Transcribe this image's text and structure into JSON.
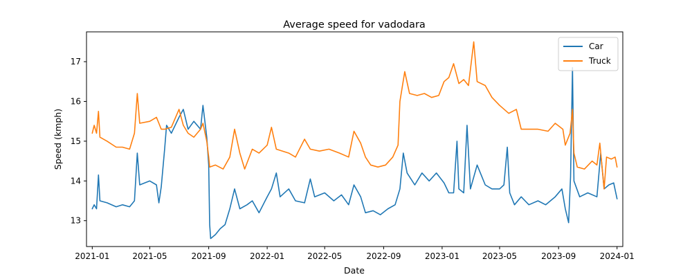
{
  "chart_data": {
    "type": "line",
    "title": "Average speed for vadodara",
    "xlabel": "Date",
    "ylabel": "Speed (kmph)",
    "xlim": [
      "2020-12-20",
      "2024-01-13"
    ],
    "ylim": [
      12.35,
      17.75
    ],
    "grid": false,
    "legend_position": "top-right",
    "x_ticks": [
      "2021-01",
      "2021-05",
      "2021-09",
      "2022-01",
      "2022-05",
      "2022-09",
      "2023-01",
      "2023-05",
      "2023-09",
      "2024-01"
    ],
    "y_ticks": [
      13,
      14,
      15,
      16,
      17
    ],
    "series": [
      {
        "name": "Car",
        "color": "#1f77b4",
        "points": [
          [
            "2021-01-01",
            13.3
          ],
          [
            "2021-01-05",
            13.4
          ],
          [
            "2021-01-10",
            13.3
          ],
          [
            "2021-01-14",
            14.15
          ],
          [
            "2021-01-17",
            13.5
          ],
          [
            "2021-02-01",
            13.45
          ],
          [
            "2021-02-20",
            13.35
          ],
          [
            "2021-03-05",
            13.4
          ],
          [
            "2021-03-20",
            13.35
          ],
          [
            "2021-03-30",
            13.5
          ],
          [
            "2021-04-05",
            14.7
          ],
          [
            "2021-04-10",
            13.9
          ],
          [
            "2021-05-01",
            14.0
          ],
          [
            "2021-05-15",
            13.9
          ],
          [
            "2021-05-20",
            13.45
          ],
          [
            "2021-05-25",
            13.85
          ],
          [
            "2021-06-01",
            14.8
          ],
          [
            "2021-06-05",
            15.4
          ],
          [
            "2021-06-15",
            15.2
          ],
          [
            "2021-07-01",
            15.6
          ],
          [
            "2021-07-10",
            15.8
          ],
          [
            "2021-07-20",
            15.3
          ],
          [
            "2021-08-01",
            15.5
          ],
          [
            "2021-08-15",
            15.3
          ],
          [
            "2021-08-20",
            15.9
          ],
          [
            "2021-08-28",
            15.1
          ],
          [
            "2021-09-01",
            14.4
          ],
          [
            "2021-09-03",
            12.9
          ],
          [
            "2021-09-05",
            12.55
          ],
          [
            "2021-09-15",
            12.65
          ],
          [
            "2021-09-25",
            12.8
          ],
          [
            "2021-10-05",
            12.9
          ],
          [
            "2021-10-15",
            13.3
          ],
          [
            "2021-10-25",
            13.8
          ],
          [
            "2021-11-05",
            13.3
          ],
          [
            "2021-11-20",
            13.4
          ],
          [
            "2021-12-01",
            13.5
          ],
          [
            "2021-12-15",
            13.2
          ],
          [
            "2022-01-01",
            13.6
          ],
          [
            "2022-01-10",
            13.8
          ],
          [
            "2022-01-20",
            14.2
          ],
          [
            "2022-01-28",
            13.6
          ],
          [
            "2022-02-15",
            13.8
          ],
          [
            "2022-03-01",
            13.5
          ],
          [
            "2022-03-20",
            13.45
          ],
          [
            "2022-04-01",
            14.05
          ],
          [
            "2022-04-10",
            13.6
          ],
          [
            "2022-05-01",
            13.7
          ],
          [
            "2022-05-20",
            13.5
          ],
          [
            "2022-06-05",
            13.65
          ],
          [
            "2022-06-20",
            13.4
          ],
          [
            "2022-07-01",
            13.9
          ],
          [
            "2022-07-15",
            13.6
          ],
          [
            "2022-07-25",
            13.2
          ],
          [
            "2022-08-10",
            13.25
          ],
          [
            "2022-08-25",
            13.15
          ],
          [
            "2022-09-10",
            13.3
          ],
          [
            "2022-09-25",
            13.4
          ],
          [
            "2022-10-05",
            13.8
          ],
          [
            "2022-10-12",
            14.7
          ],
          [
            "2022-10-20",
            14.2
          ],
          [
            "2022-11-05",
            13.9
          ],
          [
            "2022-11-20",
            14.2
          ],
          [
            "2022-12-05",
            14.0
          ],
          [
            "2022-12-20",
            14.2
          ],
          [
            "2023-01-05",
            13.95
          ],
          [
            "2023-01-15",
            13.7
          ],
          [
            "2023-01-25",
            13.7
          ],
          [
            "2023-02-01",
            15.0
          ],
          [
            "2023-02-05",
            13.8
          ],
          [
            "2023-02-15",
            13.7
          ],
          [
            "2023-02-22",
            15.4
          ],
          [
            "2023-03-01",
            13.8
          ],
          [
            "2023-03-15",
            14.4
          ],
          [
            "2023-04-01",
            13.9
          ],
          [
            "2023-04-15",
            13.8
          ],
          [
            "2023-05-01",
            13.8
          ],
          [
            "2023-05-10",
            13.9
          ],
          [
            "2023-05-17",
            14.85
          ],
          [
            "2023-05-22",
            13.7
          ],
          [
            "2023-06-01",
            13.4
          ],
          [
            "2023-06-15",
            13.6
          ],
          [
            "2023-07-01",
            13.4
          ],
          [
            "2023-07-20",
            13.5
          ],
          [
            "2023-08-05",
            13.4
          ],
          [
            "2023-08-25",
            13.6
          ],
          [
            "2023-09-08",
            13.8
          ],
          [
            "2023-09-15",
            13.3
          ],
          [
            "2023-09-22",
            12.95
          ],
          [
            "2023-09-26",
            14.1
          ],
          [
            "2023-09-30",
            16.85
          ],
          [
            "2023-10-03",
            14.0
          ],
          [
            "2023-10-15",
            13.6
          ],
          [
            "2023-11-01",
            13.7
          ],
          [
            "2023-11-20",
            13.6
          ],
          [
            "2023-11-28",
            14.7
          ],
          [
            "2023-12-05",
            13.8
          ],
          [
            "2023-12-15",
            13.9
          ],
          [
            "2023-12-25",
            13.95
          ],
          [
            "2024-01-01",
            13.55
          ]
        ]
      },
      {
        "name": "Truck",
        "color": "#ff7f0e",
        "points": [
          [
            "2021-01-01",
            15.2
          ],
          [
            "2021-01-05",
            15.4
          ],
          [
            "2021-01-10",
            15.2
          ],
          [
            "2021-01-14",
            15.75
          ],
          [
            "2021-01-17",
            15.1
          ],
          [
            "2021-02-01",
            15.0
          ],
          [
            "2021-02-20",
            14.85
          ],
          [
            "2021-03-05",
            14.85
          ],
          [
            "2021-03-20",
            14.8
          ],
          [
            "2021-03-30",
            15.2
          ],
          [
            "2021-04-05",
            16.2
          ],
          [
            "2021-04-10",
            15.45
          ],
          [
            "2021-05-01",
            15.5
          ],
          [
            "2021-05-15",
            15.6
          ],
          [
            "2021-05-20",
            15.45
          ],
          [
            "2021-05-25",
            15.3
          ],
          [
            "2021-06-01",
            15.3
          ],
          [
            "2021-06-15",
            15.35
          ],
          [
            "2021-07-01",
            15.8
          ],
          [
            "2021-07-10",
            15.4
          ],
          [
            "2021-07-20",
            15.2
          ],
          [
            "2021-08-01",
            15.1
          ],
          [
            "2021-08-15",
            15.3
          ],
          [
            "2021-08-20",
            15.45
          ],
          [
            "2021-08-28",
            15.0
          ],
          [
            "2021-09-01",
            14.6
          ],
          [
            "2021-09-03",
            14.35
          ],
          [
            "2021-09-15",
            14.4
          ],
          [
            "2021-10-01",
            14.3
          ],
          [
            "2021-10-15",
            14.6
          ],
          [
            "2021-10-25",
            15.3
          ],
          [
            "2021-11-05",
            14.7
          ],
          [
            "2021-11-15",
            14.3
          ],
          [
            "2021-12-01",
            14.8
          ],
          [
            "2021-12-15",
            14.7
          ],
          [
            "2022-01-01",
            14.9
          ],
          [
            "2022-01-10",
            15.35
          ],
          [
            "2022-01-20",
            14.8
          ],
          [
            "2022-02-15",
            14.7
          ],
          [
            "2022-03-01",
            14.6
          ],
          [
            "2022-03-20",
            15.05
          ],
          [
            "2022-04-01",
            14.8
          ],
          [
            "2022-04-20",
            14.75
          ],
          [
            "2022-05-10",
            14.8
          ],
          [
            "2022-06-01",
            14.7
          ],
          [
            "2022-06-20",
            14.6
          ],
          [
            "2022-07-01",
            15.25
          ],
          [
            "2022-07-15",
            14.95
          ],
          [
            "2022-07-25",
            14.6
          ],
          [
            "2022-08-05",
            14.4
          ],
          [
            "2022-08-20",
            14.35
          ],
          [
            "2022-09-05",
            14.4
          ],
          [
            "2022-09-20",
            14.6
          ],
          [
            "2022-10-01",
            14.9
          ],
          [
            "2022-10-05",
            16.0
          ],
          [
            "2022-10-15",
            16.75
          ],
          [
            "2022-10-25",
            16.2
          ],
          [
            "2022-11-10",
            16.15
          ],
          [
            "2022-11-25",
            16.2
          ],
          [
            "2022-12-10",
            16.1
          ],
          [
            "2022-12-25",
            16.15
          ],
          [
            "2023-01-05",
            16.5
          ],
          [
            "2023-01-15",
            16.6
          ],
          [
            "2023-01-25",
            16.95
          ],
          [
            "2023-02-05",
            16.45
          ],
          [
            "2023-02-15",
            16.55
          ],
          [
            "2023-02-25",
            16.4
          ],
          [
            "2023-03-08",
            17.5
          ],
          [
            "2023-03-15",
            16.5
          ],
          [
            "2023-04-01",
            16.4
          ],
          [
            "2023-04-15",
            16.1
          ],
          [
            "2023-05-01",
            15.9
          ],
          [
            "2023-05-20",
            15.7
          ],
          [
            "2023-06-05",
            15.8
          ],
          [
            "2023-06-15",
            15.3
          ],
          [
            "2023-07-01",
            15.3
          ],
          [
            "2023-07-20",
            15.3
          ],
          [
            "2023-08-10",
            15.25
          ],
          [
            "2023-08-25",
            15.45
          ],
          [
            "2023-09-10",
            15.3
          ],
          [
            "2023-09-15",
            14.9
          ],
          [
            "2023-09-25",
            15.2
          ],
          [
            "2023-09-30",
            15.8
          ],
          [
            "2023-10-03",
            14.7
          ],
          [
            "2023-10-10",
            14.35
          ],
          [
            "2023-10-25",
            14.3
          ],
          [
            "2023-11-10",
            14.5
          ],
          [
            "2023-11-20",
            14.4
          ],
          [
            "2023-11-26",
            14.95
          ],
          [
            "2023-12-05",
            13.8
          ],
          [
            "2023-12-10",
            14.6
          ],
          [
            "2023-12-20",
            14.55
          ],
          [
            "2023-12-28",
            14.6
          ],
          [
            "2024-01-01",
            14.35
          ]
        ]
      }
    ]
  }
}
